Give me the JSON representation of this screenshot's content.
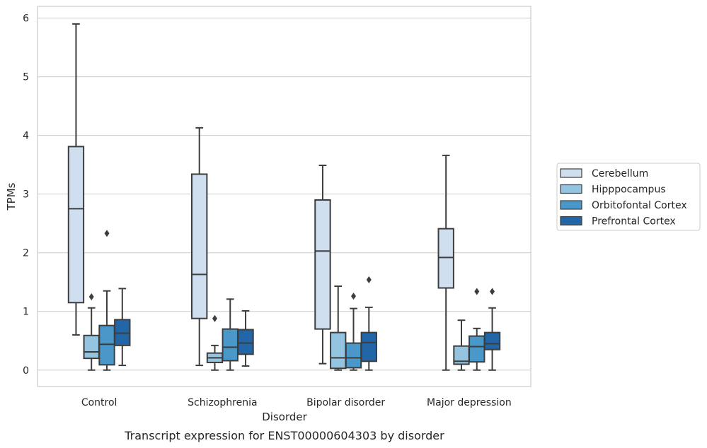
{
  "chart_data": {
    "type": "box",
    "caption": "Transcript expression for ENST00000604303 by disorder",
    "xlabel": "Disorder",
    "ylabel": "TPMs",
    "ylim": [
      -0.28,
      6.2
    ],
    "yticks": [
      0,
      1,
      2,
      3,
      4,
      5,
      6
    ],
    "grid": true,
    "legend_position": "right",
    "categories": [
      "Control",
      "Schizophrenia",
      "Bipolar disorder",
      "Major depression"
    ],
    "series": [
      {
        "name": "Cerebellum",
        "color": "#d0dff0",
        "boxes": [
          {
            "min": 0.6,
            "q1": 1.15,
            "median": 2.75,
            "q3": 3.81,
            "max": 5.9,
            "outliers": []
          },
          {
            "min": 0.08,
            "q1": 0.88,
            "median": 1.63,
            "q3": 3.34,
            "max": 4.13,
            "outliers": []
          },
          {
            "min": 0.11,
            "q1": 0.7,
            "median": 2.03,
            "q3": 2.9,
            "max": 3.49,
            "outliers": []
          },
          {
            "min": 0.0,
            "q1": 1.4,
            "median": 1.92,
            "q3": 2.41,
            "max": 3.66,
            "outliers": []
          }
        ]
      },
      {
        "name": "Hipppocampus",
        "color": "#94c4df",
        "boxes": [
          {
            "min": 0.0,
            "q1": 0.2,
            "median": 0.31,
            "q3": 0.59,
            "max": 1.06,
            "outliers": [
              1.25
            ]
          },
          {
            "min": 0.0,
            "q1": 0.13,
            "median": 0.21,
            "q3": 0.29,
            "max": 0.42,
            "outliers": [
              0.88
            ]
          },
          {
            "min": 0.0,
            "q1": 0.03,
            "median": 0.21,
            "q3": 0.64,
            "max": 1.43,
            "outliers": []
          },
          {
            "min": 0.0,
            "q1": 0.1,
            "median": 0.15,
            "q3": 0.41,
            "max": 0.85,
            "outliers": []
          }
        ]
      },
      {
        "name": "Orbitofontal Cortex",
        "color": "#4a98c9",
        "boxes": [
          {
            "min": 0.0,
            "q1": 0.09,
            "median": 0.44,
            "q3": 0.76,
            "max": 1.35,
            "outliers": [
              2.33
            ]
          },
          {
            "min": 0.0,
            "q1": 0.16,
            "median": 0.39,
            "q3": 0.7,
            "max": 1.21,
            "outliers": []
          },
          {
            "min": 0.0,
            "q1": 0.04,
            "median": 0.21,
            "q3": 0.46,
            "max": 1.05,
            "outliers": [
              1.26
            ]
          },
          {
            "min": 0.0,
            "q1": 0.14,
            "median": 0.4,
            "q3": 0.58,
            "max": 0.71,
            "outliers": [
              1.34
            ]
          }
        ]
      },
      {
        "name": "Prefrontal Cortex",
        "color": "#2366a8",
        "boxes": [
          {
            "min": 0.08,
            "q1": 0.42,
            "median": 0.63,
            "q3": 0.86,
            "max": 1.39,
            "outliers": []
          },
          {
            "min": 0.07,
            "q1": 0.27,
            "median": 0.46,
            "q3": 0.69,
            "max": 1.01,
            "outliers": []
          },
          {
            "min": 0.0,
            "q1": 0.15,
            "median": 0.47,
            "q3": 0.64,
            "max": 1.07,
            "outliers": [
              1.54
            ]
          },
          {
            "min": 0.0,
            "q1": 0.35,
            "median": 0.45,
            "q3": 0.64,
            "max": 1.06,
            "outliers": [
              1.34
            ]
          }
        ]
      }
    ]
  }
}
